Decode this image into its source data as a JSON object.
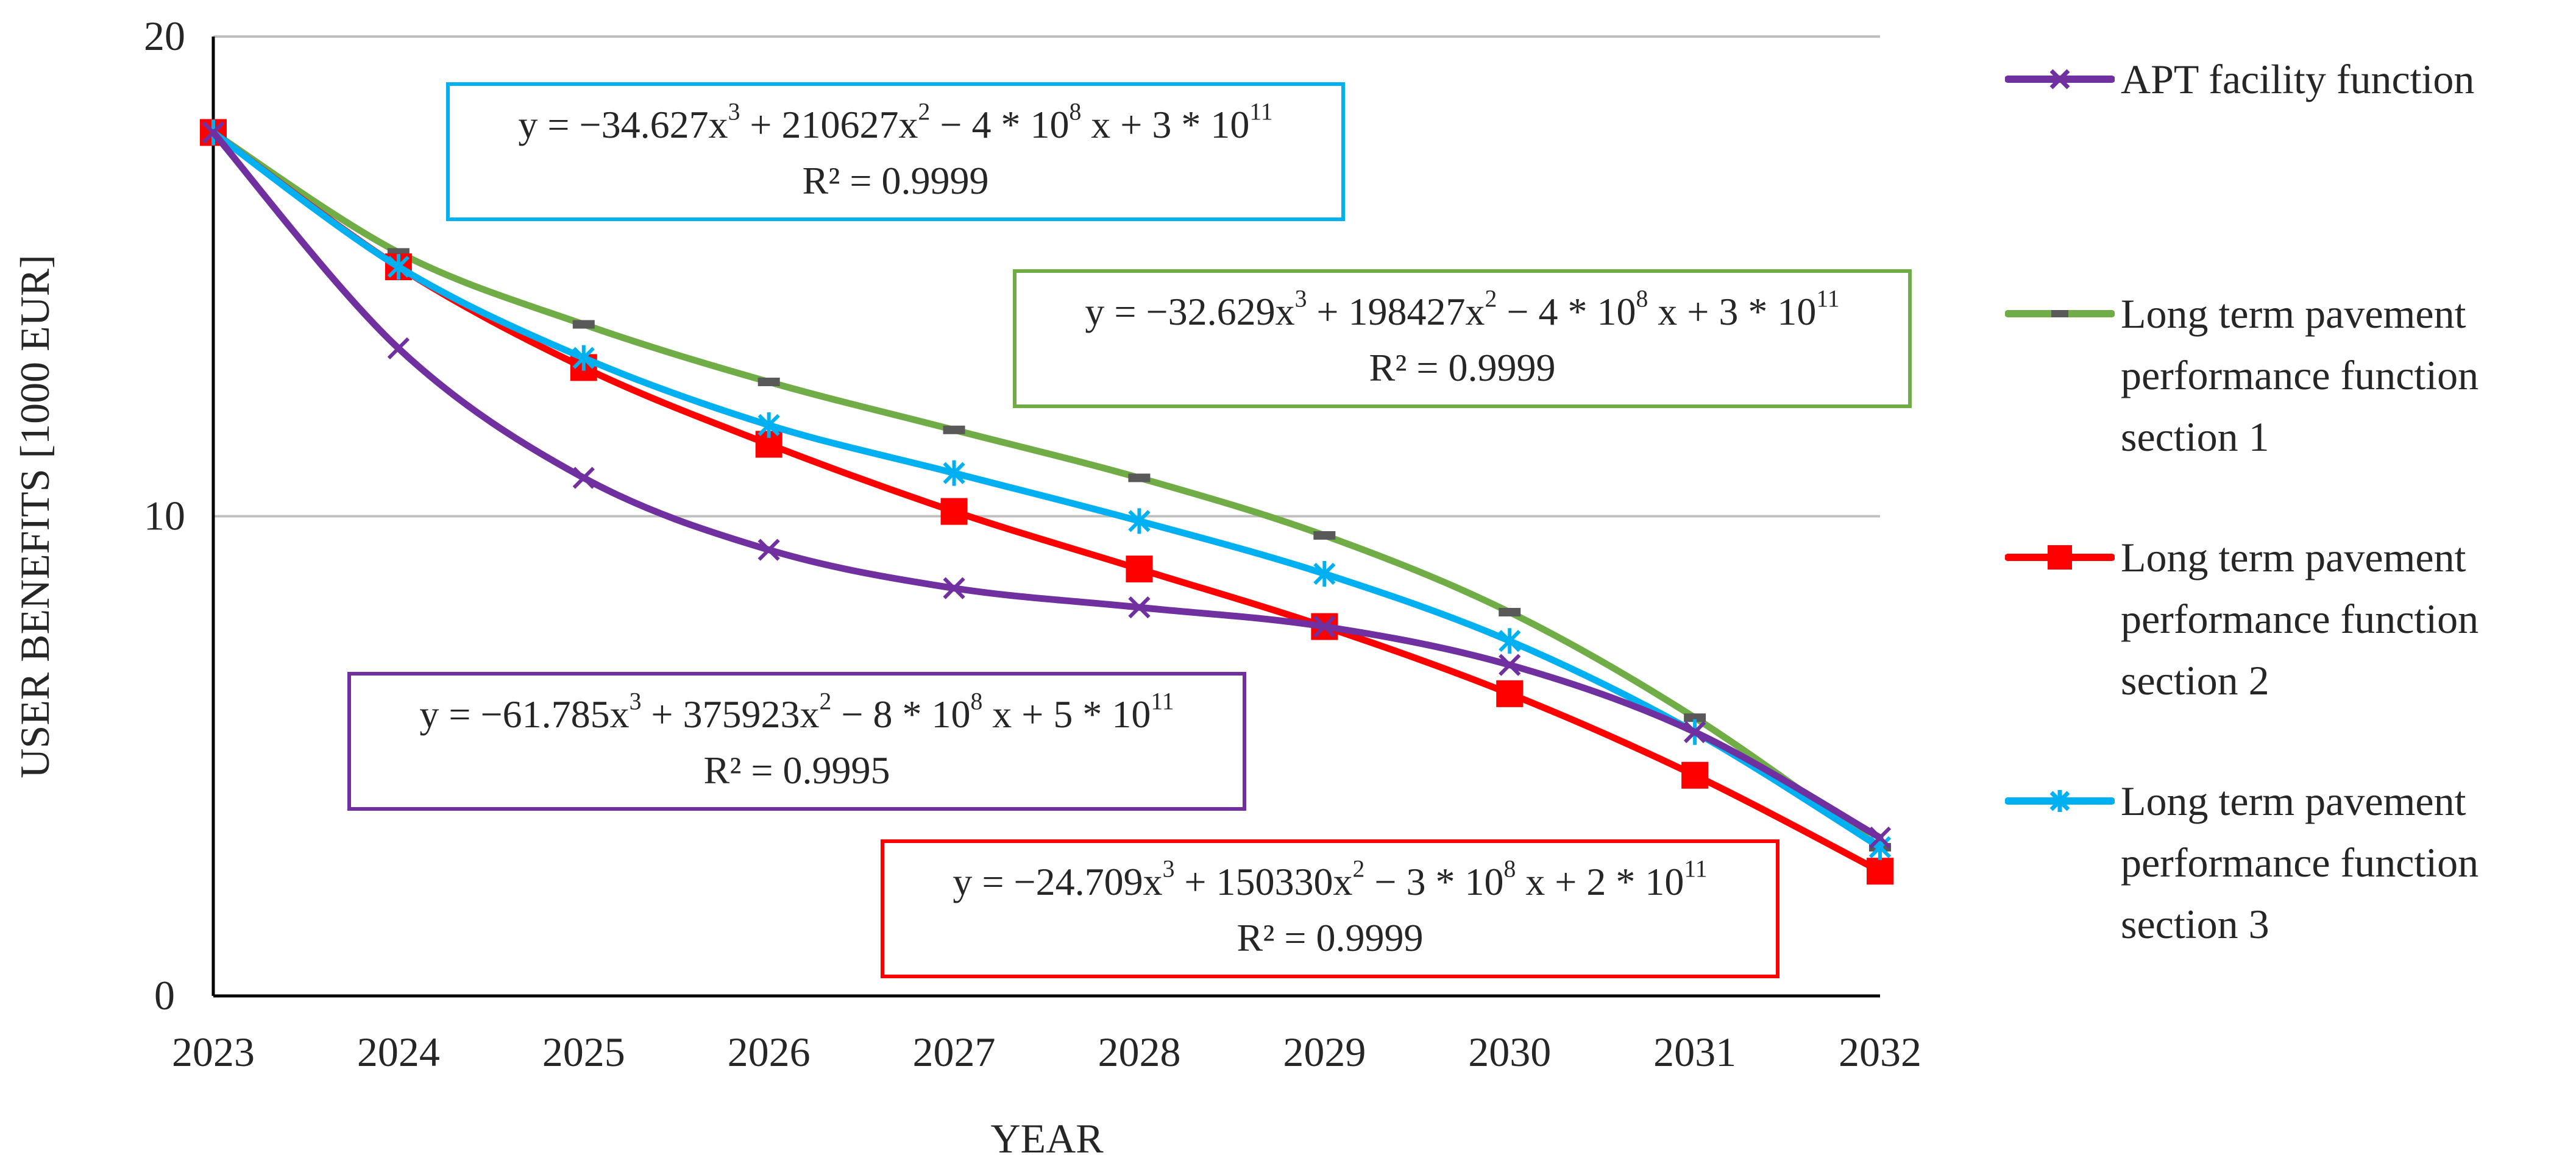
{
  "chart_data": {
    "type": "line",
    "title": "",
    "xlabel": "YEAR",
    "ylabel": "USER BENEFITS [1000 EUR]",
    "categories": [
      "2023",
      "2024",
      "2025",
      "2026",
      "2027",
      "2028",
      "2029",
      "2030",
      "2031",
      "2032"
    ],
    "ylim": [
      0,
      20
    ],
    "yticks": [
      0,
      10,
      20
    ],
    "grid": "horizontal",
    "legend_position": "right",
    "series": [
      {
        "name": "APT facility function",
        "color": "#7030A0",
        "marker": "x",
        "values": [
          18.0,
          13.5,
          10.8,
          9.3,
          8.5,
          8.1,
          7.7,
          6.9,
          5.5,
          3.3
        ],
        "equation": "y = −61.785x³ + 375923x² − 8 * 10⁸ x + 5 * 10¹¹",
        "r2": "R² = 0.9995"
      },
      {
        "name": "Long term pavement performance function section 1",
        "color": "#70AD47",
        "marker": "dash",
        "values": [
          18.0,
          15.5,
          14.0,
          12.8,
          11.8,
          10.8,
          9.6,
          8.0,
          5.8,
          3.1
        ],
        "equation": "y = −32.629x³ + 198427x² − 4 * 10⁸ x + 3 * 10¹¹",
        "r2": "R² = 0.9999"
      },
      {
        "name": "Long term pavement performance function section 2",
        "color": "#FF0000",
        "marker": "square",
        "values": [
          18.0,
          15.2,
          13.1,
          11.5,
          10.1,
          8.9,
          7.7,
          6.3,
          4.6,
          2.6
        ],
        "equation": "y = −24.709x³ + 150330x² − 3 * 10⁸ x + 2 * 10¹¹",
        "r2": "R² = 0.9999"
      },
      {
        "name": "Long term pavement performance function section 3",
        "color": "#00B0F0",
        "marker": "star",
        "values": [
          18.0,
          15.2,
          13.3,
          11.9,
          10.9,
          9.9,
          8.8,
          7.4,
          5.5,
          3.1
        ],
        "equation": "y = −34.627x³ + 210627x² − 4 * 10⁸ x + 3 * 10¹¹",
        "r2": "R² = 0.9999"
      }
    ]
  },
  "annotations": {
    "s4": {
      "eq_a": "y = −34.627x",
      "eq_a_sup": "3",
      "eq_b": " + 210627x",
      "eq_b_sup": "2",
      "eq_c": " − 4 * 10",
      "eq_c_sup": "8",
      "eq_d": " x + 3 * 10",
      "eq_d_sup": "11",
      "r2": "R² = 0.9999"
    },
    "s2": {
      "eq_a": "y = −32.629x",
      "eq_a_sup": "3",
      "eq_b": " + 198427x",
      "eq_b_sup": "2",
      "eq_c": " − 4 * 10",
      "eq_c_sup": "8",
      "eq_d": " x + 3 * 10",
      "eq_d_sup": "11",
      "r2": "R² = 0.9999"
    },
    "s1": {
      "eq_a": "y = −61.785x",
      "eq_a_sup": "3",
      "eq_b": " + 375923x",
      "eq_b_sup": "2",
      "eq_c": " − 8 * 10",
      "eq_c_sup": "8",
      "eq_d": " x + 5 * 10",
      "eq_d_sup": "11",
      "r2": "R² = 0.9995"
    },
    "s3": {
      "eq_a": "y = −24.709x",
      "eq_a_sup": "3",
      "eq_b": " + 150330x",
      "eq_b_sup": "2",
      "eq_c": " − 3 * 10",
      "eq_c_sup": "8",
      "eq_d": " x + 2 * 10",
      "eq_d_sup": "11",
      "r2": "R² = 0.9999"
    }
  },
  "legend": {
    "item1": "APT facility function",
    "item2": "Long term pavement\nperformance function\nsection 1",
    "item3": "Long term pavement\nperformance function\nsection 2",
    "item4": "Long term pavement\nperformance function\nsection 3"
  }
}
